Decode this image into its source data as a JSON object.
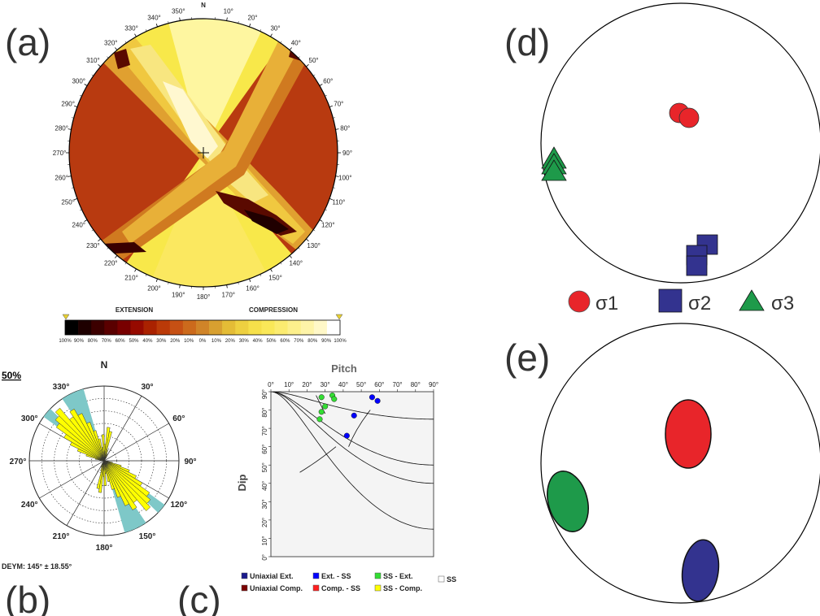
{
  "panels": {
    "a": {
      "letter": "(a)",
      "north": "N",
      "azimuth_labels": [
        "10°",
        "20°",
        "30°",
        "40°",
        "50°",
        "60°",
        "70°",
        "80°",
        "90°",
        "100°",
        "110°",
        "120°",
        "130°",
        "140°",
        "150°",
        "160°",
        "170°",
        "180°",
        "190°",
        "200°",
        "210°",
        "220°",
        "230°",
        "240°",
        "250°",
        "260°",
        "270°",
        "280°",
        "290°",
        "300°",
        "310°",
        "320°",
        "330°",
        "340°",
        "350°"
      ],
      "colorbar": {
        "extension_label": "EXTENSION",
        "compression_label": "COMPRESSION",
        "tick_labels": [
          "100%",
          "90%",
          "80%",
          "70%",
          "60%",
          "50%",
          "40%",
          "30%",
          "20%",
          "10%",
          "0%",
          "10%",
          "20%",
          "30%",
          "40%",
          "50%",
          "60%",
          "70%",
          "80%",
          "90%",
          "100%"
        ],
        "colors": [
          "#000000",
          "#1e0000",
          "#3c0000",
          "#5a0000",
          "#780000",
          "#960a00",
          "#aa2200",
          "#bb3a08",
          "#c65014",
          "#cc6a1c",
          "#d08428",
          "#d8a030",
          "#e4bc36",
          "#eed040",
          "#f6e04a",
          "#fae858",
          "#fcec70",
          "#fdf08c",
          "#fef4a8",
          "#fff8c8",
          "#ffffff"
        ]
      }
    },
    "b": {
      "letter": "(b)",
      "north": "N",
      "scale_label": "50%",
      "dir_labels": [
        "30°",
        "60°",
        "90°",
        "120°",
        "150°",
        "180°",
        "210°",
        "240°",
        "270°",
        "300°",
        "330°"
      ],
      "stat_label": "DEYM: 145° ± 18.55°",
      "petal_color": "#ffff00",
      "shade_color": "#7ec8c8"
    },
    "c": {
      "letter": "(c)",
      "title": "Pitch",
      "ylabel": "Dip",
      "x_ticks": [
        "0°",
        "10°",
        "20°",
        "30°",
        "40°",
        "50°",
        "60°",
        "70°",
        "80°",
        "90°"
      ],
      "y_ticks": [
        "90°",
        "80°",
        "70°",
        "60°",
        "50°",
        "40°",
        "30°",
        "20°",
        "10°",
        "0°"
      ],
      "legend": [
        {
          "label": "Uniaxial Ext.",
          "color": "#1a1a8c"
        },
        {
          "label": "Ext. - SS",
          "color": "#0000ff"
        },
        {
          "label": "SS - Ext.",
          "color": "#33dd33"
        },
        {
          "label": "SS",
          "color": "#ffffff"
        },
        {
          "label": "Uniaxial Comp.",
          "color": "#7a0000"
        },
        {
          "label": "Comp. - SS",
          "color": "#ff2020"
        },
        {
          "label": "SS - Comp.",
          "color": "#ffff00"
        }
      ]
    },
    "d": {
      "letter": "(d)",
      "legend": [
        {
          "label": "σ1",
          "color": "#e8252a",
          "shape": "circle"
        },
        {
          "label": "σ2",
          "color": "#33338f",
          "shape": "square"
        },
        {
          "label": "σ3",
          "color": "#1e9a4a",
          "shape": "triangle"
        }
      ]
    },
    "e": {
      "letter": "(e)",
      "ellipse_colors": [
        "#e8252a",
        "#1e9a4a",
        "#33338f"
      ]
    }
  },
  "chart_data": {
    "type": "scatter",
    "title": "Pitch",
    "xlabel": "Pitch",
    "ylabel": "Dip",
    "xlim": [
      0,
      90
    ],
    "ylim": [
      0,
      90
    ],
    "series": [
      {
        "name": "SS - Ext.",
        "color": "#33dd33",
        "x": [
          28,
          34,
          35,
          30,
          28,
          27
        ],
        "y": [
          87,
          88,
          86,
          82,
          79,
          75
        ]
      },
      {
        "name": "Ext. - SS",
        "color": "#0000ff",
        "x": [
          56,
          59,
          46,
          42
        ],
        "y": [
          87,
          85,
          77,
          66
        ]
      }
    ]
  }
}
